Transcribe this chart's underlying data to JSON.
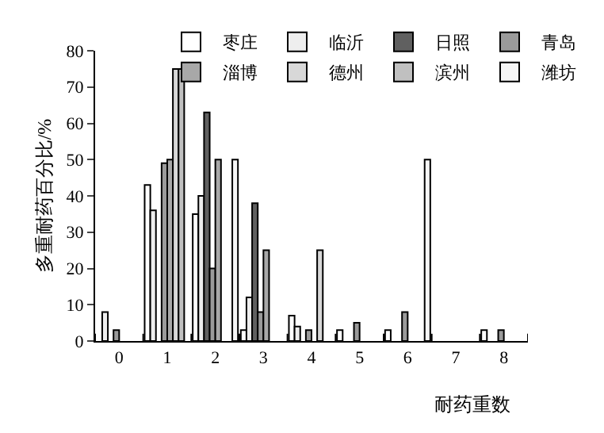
{
  "chart_data": {
    "type": "bar",
    "xlabel": "耐药重数",
    "ylabel": "多重耐药百分比/%",
    "categories": [
      "0",
      "1",
      "2",
      "3",
      "4",
      "5",
      "6",
      "7",
      "8"
    ],
    "series": [
      {
        "name": "枣庄",
        "color": "#ffffff",
        "values": [
          null,
          43,
          35,
          3,
          7,
          3,
          3,
          null,
          3
        ]
      },
      {
        "name": "临沂",
        "color": "#eeeeee",
        "values": [
          8,
          36,
          40,
          12,
          4,
          null,
          null,
          null,
          null
        ]
      },
      {
        "name": "日照",
        "color": "#606060",
        "values": [
          null,
          null,
          63,
          38,
          null,
          null,
          null,
          null,
          null
        ]
      },
      {
        "name": "青岛",
        "color": "#9a9a9a",
        "values": [
          3,
          49,
          20,
          8,
          3,
          5,
          8,
          null,
          3
        ]
      },
      {
        "name": "淄博",
        "color": "#a8a8a8",
        "values": [
          null,
          50,
          50,
          25,
          null,
          null,
          null,
          null,
          null
        ]
      },
      {
        "name": "德州",
        "color": "#d8d8d8",
        "values": [
          null,
          75,
          null,
          null,
          25,
          null,
          null,
          null,
          null
        ]
      },
      {
        "name": "滨州",
        "color": "#c0c0c0",
        "values": [
          null,
          75,
          null,
          null,
          null,
          null,
          null,
          null,
          null
        ]
      },
      {
        "name": "潍坊",
        "color": "#f6f6f6",
        "values": [
          null,
          null,
          50,
          null,
          null,
          null,
          50,
          null,
          null
        ]
      }
    ],
    "ylim": [
      0,
      80
    ],
    "yticks": [
      0,
      10,
      20,
      30,
      40,
      50,
      60,
      70,
      80
    ],
    "grid": false,
    "legend": "top right"
  }
}
